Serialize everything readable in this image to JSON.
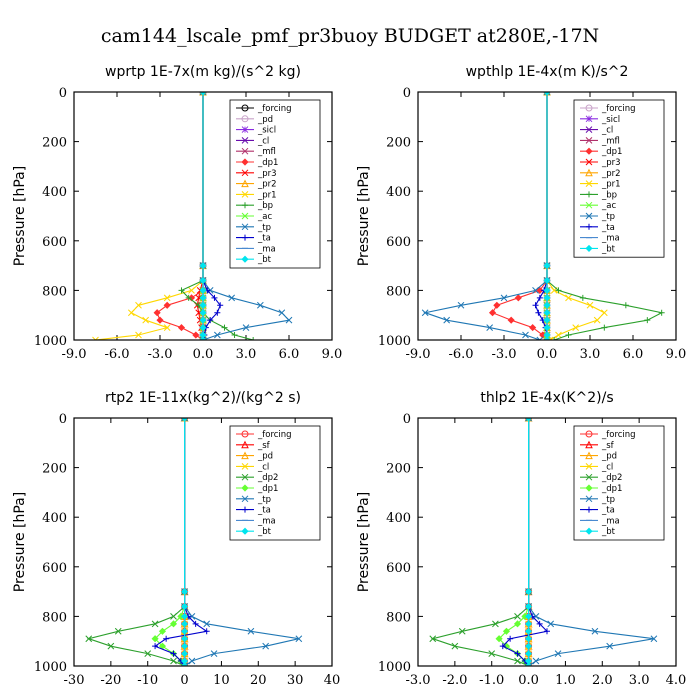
{
  "figure_title": "cam144_lscale_pmf_pr3buoy  BUDGET at280E,-17N",
  "chart_data": [
    {
      "type": "line",
      "title": "wprtp   1E-7x(m kg)/(s^2 kg)",
      "ylabel": "Pressure [hPa]",
      "xlim": [
        -9,
        9
      ],
      "ylim": [
        1000,
        0
      ],
      "xticks": [
        "-9.0",
        "-6.0",
        "-3.0",
        "0.0",
        "3.0",
        "6.0",
        "9.0"
      ],
      "yticks": [
        "0",
        "200",
        "400",
        "600",
        "800",
        "1000"
      ],
      "legend_position": "top-right",
      "pressure_levels": [
        0,
        700,
        760,
        800,
        830,
        860,
        890,
        920,
        950,
        980,
        1000
      ],
      "series": [
        {
          "name": "_forcing",
          "color": "#000000",
          "marker": "circle",
          "values": [
            0,
            0,
            0,
            0,
            0,
            0,
            0,
            0,
            0,
            0,
            0
          ]
        },
        {
          "name": "_pd",
          "color": "#c8a2c8",
          "marker": "circle",
          "values": [
            0,
            0,
            0,
            0,
            0,
            0,
            0,
            0,
            0,
            0,
            0
          ]
        },
        {
          "name": "_sicl",
          "color": "#8a2be2",
          "marker": "star",
          "values": [
            0,
            0,
            0,
            0,
            0,
            0,
            0,
            0,
            0,
            0,
            0
          ]
        },
        {
          "name": "_cl",
          "color": "#6a0dad",
          "marker": "x",
          "values": [
            0,
            0,
            0,
            0,
            0,
            0,
            0,
            0,
            0,
            0,
            0
          ]
        },
        {
          "name": "_mfl",
          "color": "#b0306a",
          "marker": "x",
          "values": [
            0,
            0,
            0,
            0,
            0,
            0,
            0,
            0,
            0,
            0,
            0
          ]
        },
        {
          "name": "_dp1",
          "color": "#ff3030",
          "marker": "diamond",
          "values": [
            0,
            0,
            0,
            0,
            -0.8,
            -2.5,
            -3.2,
            -3.0,
            -1.5,
            -0.5,
            0
          ]
        },
        {
          "name": "_pr3",
          "color": "#ff0000",
          "marker": "x",
          "values": [
            0,
            0,
            0,
            -0.2,
            -0.3,
            -0.4,
            -0.3,
            -0.2,
            -0.1,
            0,
            0
          ]
        },
        {
          "name": "_pr2",
          "color": "#ffa500",
          "marker": "triangle",
          "values": [
            0,
            0,
            0,
            0,
            0,
            0,
            0,
            0,
            0,
            0,
            0
          ]
        },
        {
          "name": "_pr1",
          "color": "#ffd700",
          "marker": "x",
          "values": [
            0,
            0,
            0,
            -0.8,
            -2.5,
            -4.5,
            -5.0,
            -4.0,
            -2.5,
            -4.5,
            -7.5
          ]
        },
        {
          "name": "_bp",
          "color": "#2ca02c",
          "marker": "plus",
          "values": [
            0,
            0,
            0,
            -1.5,
            -1.0,
            -0.3,
            0,
            0.5,
            1.5,
            2.2,
            3.5
          ]
        },
        {
          "name": "_ac",
          "color": "#66ff33",
          "marker": "x",
          "values": [
            0,
            0,
            0,
            0,
            0,
            0,
            0,
            0,
            0,
            0,
            0
          ]
        },
        {
          "name": "_tp",
          "color": "#1f77b4",
          "marker": "x",
          "values": [
            0,
            0,
            0,
            0.5,
            2.0,
            4.0,
            5.5,
            6.0,
            3.0,
            1.0,
            0
          ]
        },
        {
          "name": "_ta",
          "color": "#0000cd",
          "marker": "plus",
          "values": [
            0,
            0,
            0,
            0.3,
            0.8,
            1.2,
            1.0,
            0.5,
            0.2,
            0.1,
            0
          ]
        },
        {
          "name": "_ma",
          "color": "#4a8ad0",
          "marker": "dash",
          "values": [
            0,
            0,
            0,
            0,
            0,
            0,
            0,
            0,
            0,
            0,
            0
          ]
        },
        {
          "name": "_bt",
          "color": "#00e5ee",
          "marker": "diamond",
          "values": [
            0,
            0,
            0,
            0,
            0,
            0,
            0,
            0,
            0,
            0,
            0
          ]
        }
      ]
    },
    {
      "type": "line",
      "title": "wpthlp   1E-4x(m K)/s^2",
      "ylabel": "Pressure [hPa]",
      "xlim": [
        -9,
        9
      ],
      "ylim": [
        1000,
        0
      ],
      "xticks": [
        "-9.0",
        "-6.0",
        "-3.0",
        "0.0",
        "3.0",
        "6.0",
        "9.0"
      ],
      "yticks": [
        "0",
        "200",
        "400",
        "600",
        "800",
        "1000"
      ],
      "legend_position": "top-right",
      "pressure_levels": [
        0,
        700,
        760,
        800,
        830,
        860,
        890,
        920,
        950,
        980,
        1000
      ],
      "series": [
        {
          "name": "_forcing",
          "color": "#c8a2c8",
          "marker": "circle",
          "values": [
            0,
            0,
            0,
            0,
            0,
            0,
            0,
            0,
            0,
            0,
            0
          ]
        },
        {
          "name": "_sicl",
          "color": "#8a2be2",
          "marker": "star",
          "values": [
            0,
            0,
            0,
            0,
            0,
            0,
            0,
            0,
            0,
            0,
            0
          ]
        },
        {
          "name": "_cl",
          "color": "#6a0dad",
          "marker": "x",
          "values": [
            0,
            0,
            0,
            0,
            0,
            0,
            0,
            0,
            0,
            0,
            0
          ]
        },
        {
          "name": "_mfl",
          "color": "#b0306a",
          "marker": "x",
          "values": [
            0,
            0,
            0,
            0,
            0,
            0,
            0,
            0,
            0,
            0,
            0
          ]
        },
        {
          "name": "_dp1",
          "color": "#ff3030",
          "marker": "diamond",
          "values": [
            0,
            0,
            0,
            -0.5,
            -2.0,
            -3.5,
            -3.8,
            -2.5,
            -1.0,
            -0.3,
            0
          ]
        },
        {
          "name": "_pr3",
          "color": "#ff0000",
          "marker": "x",
          "values": [
            0,
            0,
            0,
            0,
            0,
            0,
            0,
            0,
            0,
            0,
            0
          ]
        },
        {
          "name": "_pr2",
          "color": "#ffa500",
          "marker": "triangle",
          "values": [
            0,
            0,
            0,
            0,
            0,
            0,
            0,
            0,
            0,
            0,
            0
          ]
        },
        {
          "name": "_pr1",
          "color": "#ffd700",
          "marker": "x",
          "values": [
            0,
            0,
            0,
            0.5,
            1.5,
            3.0,
            4.0,
            3.5,
            2.0,
            0.8,
            0.2
          ]
        },
        {
          "name": "_bp",
          "color": "#2ca02c",
          "marker": "plus",
          "values": [
            0,
            0,
            0,
            0.8,
            2.5,
            5.5,
            8.0,
            7.0,
            4.0,
            1.5,
            0.5
          ]
        },
        {
          "name": "_ac",
          "color": "#66ff33",
          "marker": "x",
          "values": [
            0,
            0,
            0,
            0,
            0,
            0,
            0,
            0,
            0,
            0,
            0
          ]
        },
        {
          "name": "_tp",
          "color": "#1f77b4",
          "marker": "x",
          "values": [
            0,
            0,
            0,
            -0.8,
            -3.0,
            -6.0,
            -8.5,
            -7.0,
            -4.0,
            -1.5,
            -0.5
          ]
        },
        {
          "name": "_ta",
          "color": "#0000cd",
          "marker": "plus",
          "values": [
            0,
            0,
            0,
            -0.2,
            -0.5,
            -0.8,
            -0.6,
            -0.3,
            -0.1,
            0,
            0
          ]
        },
        {
          "name": "_ma",
          "color": "#4a8ad0",
          "marker": "dash",
          "values": [
            0,
            0,
            0,
            0,
            0,
            0,
            0,
            0,
            0,
            0,
            0
          ]
        },
        {
          "name": "_bt",
          "color": "#00e5ee",
          "marker": "diamond",
          "values": [
            0,
            0,
            0,
            0,
            0,
            0,
            0,
            0,
            0,
            0,
            0
          ]
        }
      ]
    },
    {
      "type": "line",
      "title": "rtp2   1E-11x(kg^2)/(kg^2 s)",
      "ylabel": "Pressure [hPa]",
      "xlim": [
        -30,
        40
      ],
      "ylim": [
        1000,
        0
      ],
      "xticks": [
        "-30",
        "-20",
        "-10",
        "0",
        "10",
        "20",
        "30",
        "40"
      ],
      "yticks": [
        "0",
        "200",
        "400",
        "600",
        "800",
        "1000"
      ],
      "legend_position": "top-right",
      "pressure_levels": [
        0,
        700,
        760,
        800,
        830,
        860,
        890,
        920,
        950,
        980,
        1000
      ],
      "series": [
        {
          "name": "_forcing",
          "color": "#ff3030",
          "marker": "circle",
          "values": [
            0,
            0,
            0,
            0,
            0,
            0,
            0,
            0,
            0,
            0,
            0
          ]
        },
        {
          "name": "_sf",
          "color": "#ff0000",
          "marker": "triangle",
          "values": [
            0,
            0,
            0,
            0,
            0,
            0,
            0,
            0,
            0,
            0,
            0
          ]
        },
        {
          "name": "_pd",
          "color": "#ffa500",
          "marker": "triangle",
          "values": [
            0,
            0,
            0,
            0,
            0,
            0,
            0,
            0,
            0,
            0,
            0
          ]
        },
        {
          "name": "_cl",
          "color": "#ffd700",
          "marker": "x",
          "values": [
            0,
            0,
            0,
            0,
            0,
            0,
            0,
            0,
            0,
            0,
            0
          ]
        },
        {
          "name": "_dp2",
          "color": "#2ca02c",
          "marker": "x",
          "values": [
            0,
            0,
            0,
            -3,
            -8,
            -18,
            -26,
            -20,
            -10,
            -3,
            0
          ]
        },
        {
          "name": "_dp1",
          "color": "#66ff33",
          "marker": "diamond",
          "values": [
            0,
            0,
            0,
            -1,
            -3,
            -6,
            -8,
            -6,
            -3,
            -1,
            0
          ]
        },
        {
          "name": "_tp",
          "color": "#1f77b4",
          "marker": "x",
          "values": [
            0,
            0,
            0,
            2,
            6,
            18,
            31,
            22,
            8,
            2,
            0
          ]
        },
        {
          "name": "_ta",
          "color": "#0000cd",
          "marker": "plus",
          "values": [
            0,
            0,
            0,
            1,
            3,
            6,
            -5,
            -8,
            -3,
            -1,
            0
          ]
        },
        {
          "name": "_ma",
          "color": "#4a8ad0",
          "marker": "dash",
          "values": [
            0,
            0,
            0,
            0,
            0,
            0,
            0,
            0,
            0,
            0,
            0
          ]
        },
        {
          "name": "_bt",
          "color": "#00e5ee",
          "marker": "diamond",
          "values": [
            0,
            0,
            0,
            0,
            0,
            0,
            0,
            0,
            0,
            0,
            0
          ]
        }
      ]
    },
    {
      "type": "line",
      "title": "thlp2   1E-4x(K^2)/s",
      "ylabel": "Pressure [hPa]",
      "xlim": [
        -3,
        4
      ],
      "ylim": [
        1000,
        0
      ],
      "xticks": [
        "-3.0",
        "-2.0",
        "-1.0",
        "0.0",
        "1.0",
        "2.0",
        "3.0",
        "4.0"
      ],
      "yticks": [
        "0",
        "200",
        "400",
        "600",
        "800",
        "1000"
      ],
      "legend_position": "top-right",
      "pressure_levels": [
        0,
        700,
        760,
        800,
        830,
        860,
        890,
        920,
        950,
        980,
        1000
      ],
      "series": [
        {
          "name": "_forcing",
          "color": "#ff3030",
          "marker": "circle",
          "values": [
            0,
            0,
            0,
            0,
            0,
            0,
            0,
            0,
            0,
            0,
            0
          ]
        },
        {
          "name": "_sf",
          "color": "#ff0000",
          "marker": "triangle",
          "values": [
            0,
            0,
            0,
            0,
            0,
            0,
            0,
            0,
            0,
            0,
            0
          ]
        },
        {
          "name": "_pd",
          "color": "#ffa500",
          "marker": "triangle",
          "values": [
            0,
            0,
            0,
            0,
            0,
            0,
            0,
            0,
            0,
            0,
            0
          ]
        },
        {
          "name": "_cl",
          "color": "#ffd700",
          "marker": "x",
          "values": [
            0,
            0,
            0,
            0,
            0,
            0,
            0,
            0,
            0,
            0,
            0
          ]
        },
        {
          "name": "_dp2",
          "color": "#2ca02c",
          "marker": "x",
          "values": [
            0,
            0,
            0,
            -0.3,
            -0.9,
            -1.8,
            -2.6,
            -2.0,
            -1.0,
            -0.3,
            0
          ]
        },
        {
          "name": "_dp1",
          "color": "#66ff33",
          "marker": "diamond",
          "values": [
            0,
            0,
            0,
            -0.1,
            -0.3,
            -0.6,
            -0.8,
            -0.6,
            -0.3,
            -0.1,
            0
          ]
        },
        {
          "name": "_tp",
          "color": "#1f77b4",
          "marker": "x",
          "values": [
            0,
            0,
            0,
            0.2,
            0.6,
            1.8,
            3.4,
            2.2,
            0.8,
            0.2,
            0
          ]
        },
        {
          "name": "_ta",
          "color": "#0000cd",
          "marker": "plus",
          "values": [
            0,
            0,
            0,
            0.1,
            0.3,
            0.5,
            -0.5,
            -0.7,
            -0.3,
            -0.1,
            0
          ]
        },
        {
          "name": "_ma",
          "color": "#4a8ad0",
          "marker": "dash",
          "values": [
            0,
            0,
            0,
            0,
            0,
            0,
            0,
            0,
            0,
            0,
            0
          ]
        },
        {
          "name": "_bt",
          "color": "#00e5ee",
          "marker": "diamond",
          "values": [
            0,
            0,
            0,
            0,
            0,
            0,
            0,
            0,
            0,
            0,
            0
          ]
        }
      ]
    }
  ]
}
